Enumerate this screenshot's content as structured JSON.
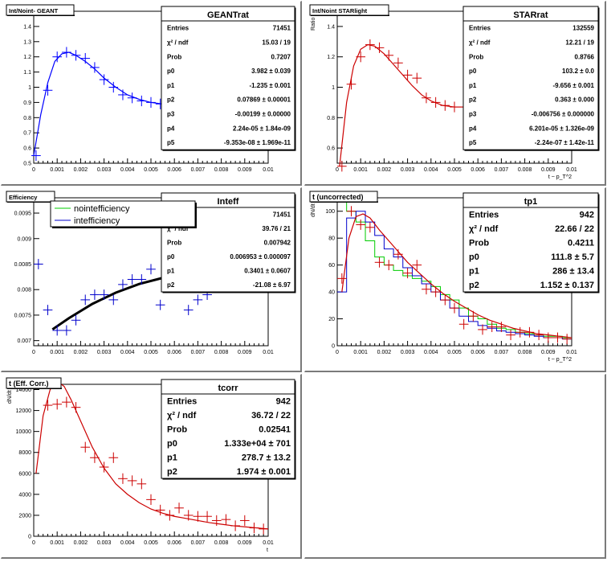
{
  "pads": [
    {
      "title": "Int/Noint- GEANT",
      "stats": {
        "name": "GEANTrat",
        "rows": [
          {
            "k": "Entries",
            "v": "71451"
          },
          {
            "k": "χ² / ndf",
            "v": "15.03 / 19"
          },
          {
            "k": "Prob",
            "v": "0.7207"
          },
          {
            "k": "p0",
            "v": "3.982 ± 0.039"
          },
          {
            "k": "p1",
            "v": "-1.235 ± 0.001"
          },
          {
            "k": "p2",
            "v": "0.07869 ± 0.00001"
          },
          {
            "k": "p3",
            "v": "-0.00199 ± 0.00000"
          },
          {
            "k": "p4",
            "v": "2.24e-05 ± 1.84e-09"
          },
          {
            "k": "p5",
            "v": "-9.353e-08 ± 1.969e-11"
          }
        ]
      },
      "xlabel": "",
      "ylabel": ""
    },
    {
      "title": "Int/Noint STARlight",
      "stats": {
        "name": "STARrat",
        "rows": [
          {
            "k": "Entries",
            "v": "132559"
          },
          {
            "k": "χ² / ndf",
            "v": "12.21 / 19"
          },
          {
            "k": "Prob",
            "v": "0.8766"
          },
          {
            "k": "p0",
            "v": "103.2 ± 0.0"
          },
          {
            "k": "p1",
            "v": "-9.656 ± 0.001"
          },
          {
            "k": "p2",
            "v": "0.363 ± 0.000"
          },
          {
            "k": "p3",
            "v": "-0.006756 ± 0.000000"
          },
          {
            "k": "p4",
            "v": "6.201e-05 ± 1.326e-09"
          },
          {
            "k": "p5",
            "v": "-2.24e-07 ± 1.42e-11"
          }
        ]
      },
      "xlabel": "t ~ p_T^2",
      "ylabel": "Ratio"
    },
    {
      "title": "Efficiency",
      "stats": {
        "name": "Inteff",
        "rows": [
          {
            "k": "Entries",
            "v": "71451"
          },
          {
            "k": "χ² / ndf",
            "v": "39.76 / 21"
          },
          {
            "k": "Prob",
            "v": "0.007942"
          },
          {
            "k": "p0",
            "v": "0.006953 ± 0.000097"
          },
          {
            "k": "p1",
            "v": "0.3401 ± 0.0607"
          },
          {
            "k": "p2",
            "v": "-21.08 ± 6.97"
          }
        ]
      },
      "legend": [
        {
          "label": "nointefficiency",
          "color": "#00cc00"
        },
        {
          "label": "intefficiency",
          "color": "#0000cc"
        }
      ],
      "xlabel": "",
      "ylabel": ""
    },
    {
      "title": "t (uncorrected)",
      "stats": {
        "name": "tp1",
        "rows": [
          {
            "k": "Entries",
            "v": "942"
          },
          {
            "k": "χ² / ndf",
            "v": "22.66 / 22"
          },
          {
            "k": "Prob",
            "v": "0.4211"
          },
          {
            "k": "p0",
            "v": "111.8 ± 5.7"
          },
          {
            "k": "p1",
            "v": "286 ± 13.4"
          },
          {
            "k": "p2",
            "v": "1.152 ± 0.137"
          }
        ]
      },
      "xlabel": "t ~ p_T^2",
      "ylabel": "dN/dt"
    },
    {
      "title": "t (Eff. Corr.)",
      "stats": {
        "name": "tcorr",
        "rows": [
          {
            "k": "Entries",
            "v": "942"
          },
          {
            "k": "χ² / ndf",
            "v": "36.72 / 22"
          },
          {
            "k": "Prob",
            "v": "0.02541"
          },
          {
            "k": "p0",
            "v": "1.333e+04 ± 701"
          },
          {
            "k": "p1",
            "v": "278.7 ± 13.2"
          },
          {
            "k": "p2",
            "v": "1.974 ± 0.001"
          }
        ]
      },
      "xlabel": "t",
      "ylabel": "dN/dt"
    }
  ],
  "chart_data": [
    {
      "type": "scatter",
      "title": "Int/Noint- GEANT",
      "xlim": [
        0,
        0.01
      ],
      "ylim": [
        0.5,
        1.5
      ],
      "xticks": [
        "0",
        "0.001",
        "0.002",
        "0.003",
        "0.004",
        "0.005",
        "0.006",
        "0.007",
        "0.008",
        "0.009",
        "0.01"
      ],
      "yticks": [
        "0.5",
        "0.6",
        "0.7",
        "0.8",
        "0.9",
        "1",
        "1.1",
        "1.2",
        "1.3",
        "1.4",
        "1.5"
      ],
      "points": {
        "x": [
          0.0001,
          0.0006,
          0.001,
          0.0014,
          0.0018,
          0.0022,
          0.0026,
          0.003,
          0.0034,
          0.0038,
          0.0042,
          0.0046,
          0.005,
          0.0054
        ],
        "y": [
          0.55,
          0.98,
          1.2,
          1.23,
          1.21,
          1.19,
          1.13,
          1.05,
          1.0,
          0.95,
          0.93,
          0.91,
          0.9,
          0.89
        ],
        "color": "#0000ff"
      },
      "fit": {
        "x": [
          0.0,
          0.0003,
          0.0006,
          0.0009,
          0.0012,
          0.0015,
          0.0018,
          0.0022,
          0.0026,
          0.003,
          0.0035,
          0.004,
          0.0045,
          0.005,
          0.0055
        ],
        "y": [
          0.55,
          0.82,
          1.03,
          1.17,
          1.22,
          1.23,
          1.21,
          1.17,
          1.12,
          1.06,
          1.0,
          0.95,
          0.92,
          0.9,
          0.89
        ],
        "color": "#0000ff"
      }
    },
    {
      "type": "scatter",
      "title": "Int/Noint STARlight",
      "xlim": [
        0,
        0.01
      ],
      "ylim": [
        0.5,
        1.5
      ],
      "xlabel": "t ~ p_T^2",
      "ylabel": "Ratio",
      "xticks": [
        "0",
        "0.001",
        "0.002",
        "0.003",
        "0.004",
        "0.005",
        "0.006",
        "0.007",
        "0.008",
        "0.009",
        "0.01"
      ],
      "yticks": [
        "0.6",
        "0.8",
        "1",
        "1.2",
        "1.4"
      ],
      "points": {
        "x": [
          0.0002,
          0.0006,
          0.001,
          0.0014,
          0.0018,
          0.0022,
          0.0026,
          0.003,
          0.0034,
          0.0038,
          0.0042,
          0.0046,
          0.005,
          0.0054
        ],
        "y": [
          0.48,
          1.02,
          1.2,
          1.28,
          1.26,
          1.21,
          1.16,
          1.08,
          1.06,
          0.93,
          0.9,
          0.88,
          0.87,
          0.87
        ],
        "color": "#cc0000"
      },
      "fit": {
        "x": [
          0.0001,
          0.0004,
          0.0007,
          0.001,
          0.0013,
          0.0016,
          0.002,
          0.0024,
          0.0028,
          0.0032,
          0.0036,
          0.004,
          0.0045,
          0.005,
          0.0055
        ],
        "y": [
          0.48,
          0.9,
          1.14,
          1.25,
          1.28,
          1.27,
          1.22,
          1.15,
          1.08,
          1.01,
          0.95,
          0.91,
          0.88,
          0.87,
          0.87
        ],
        "color": "#cc0000"
      }
    },
    {
      "type": "scatter",
      "title": "Efficiency",
      "xlim": [
        0,
        0.01
      ],
      "ylim": [
        0.0069,
        0.0098
      ],
      "xticks": [
        "0",
        "0.001",
        "0.002",
        "0.003",
        "0.004",
        "0.005",
        "0.006",
        "0.007",
        "0.008",
        "0.009",
        "0.01"
      ],
      "yticks": [
        "0.007",
        "0.0075",
        "0.008",
        "0.0085",
        "0.009",
        "0.0095"
      ],
      "points": {
        "x": [
          0.0002,
          0.0006,
          0.001,
          0.0014,
          0.0018,
          0.0022,
          0.0026,
          0.003,
          0.0034,
          0.0038,
          0.0042,
          0.0046,
          0.005,
          0.0054,
          0.0058,
          0.0062,
          0.0066,
          0.007,
          0.0074,
          0.0078,
          0.0082,
          0.0086,
          0.009,
          0.0094,
          0.0098
        ],
        "y": [
          0.0085,
          0.0076,
          0.0072,
          0.0072,
          0.0074,
          0.0078,
          0.0079,
          0.0079,
          0.0078,
          0.0081,
          0.0082,
          0.0082,
          0.0084,
          0.0077,
          0.0081,
          0.0083,
          0.0076,
          0.0078,
          0.0079,
          0.0084,
          0.0083,
          0.0083,
          0.0081,
          0.0083,
          0.0082
        ],
        "color": "#0000cc"
      },
      "fit": {
        "x": [
          0.0008,
          0.0015,
          0.0025,
          0.0035,
          0.0045,
          0.0055,
          0.0065,
          0.0075,
          0.0085,
          0.0095,
          0.01
        ],
        "y": [
          0.00722,
          0.00744,
          0.00772,
          0.00794,
          0.00811,
          0.00823,
          0.00831,
          0.00834,
          0.00832,
          0.00826,
          0.00822
        ],
        "color": "#000000"
      }
    },
    {
      "type": "line",
      "title": "t (uncorrected)",
      "xlim": [
        0,
        0.01
      ],
      "ylim": [
        0,
        110
      ],
      "xlabel": "t ~ p_T^2",
      "ylabel": "dN/dt",
      "xticks": [
        "0",
        "0.001",
        "0.002",
        "0.003",
        "0.004",
        "0.005",
        "0.006",
        "0.007",
        "0.008",
        "0.009",
        "0.01"
      ],
      "yticks": [
        "0",
        "20",
        "40",
        "60",
        "80",
        "100"
      ],
      "series": [
        {
          "color": "#00cc00",
          "x": [
            0,
            0.0004,
            0.0008,
            0.0012,
            0.0016,
            0.002,
            0.0024,
            0.0028,
            0.0032,
            0.0036,
            0.004,
            0.0044,
            0.0048,
            0.0052,
            0.0056,
            0.006,
            0.0064,
            0.0068,
            0.0072,
            0.0076,
            0.008,
            0.0084,
            0.0088,
            0.0092,
            0.0096,
            0.01
          ],
          "y": [
            108,
            100,
            92,
            78,
            66,
            60,
            56,
            52,
            50,
            48,
            44,
            38,
            34,
            28,
            22,
            20,
            16,
            13,
            12,
            10,
            9,
            8,
            7,
            7,
            6,
            6
          ]
        },
        {
          "color": "#0000cc",
          "x": [
            0,
            0.0004,
            0.0008,
            0.0012,
            0.0016,
            0.002,
            0.0024,
            0.0028,
            0.0032,
            0.0036,
            0.004,
            0.0044,
            0.0048,
            0.0052,
            0.0056,
            0.006,
            0.0064,
            0.0068,
            0.0072,
            0.0076,
            0.008,
            0.0084,
            0.0088,
            0.0092,
            0.0096,
            0.01
          ],
          "y": [
            40,
            95,
            100,
            92,
            82,
            72,
            66,
            58,
            52,
            46,
            40,
            34,
            28,
            22,
            18,
            15,
            13,
            11,
            10,
            9,
            8,
            7,
            6,
            6,
            5,
            5
          ]
        }
      ],
      "points": {
        "x": [
          0.0002,
          0.0006,
          0.001,
          0.0014,
          0.0018,
          0.0022,
          0.0026,
          0.003,
          0.0034,
          0.0038,
          0.0042,
          0.0046,
          0.005,
          0.0054,
          0.0058,
          0.0062,
          0.0066,
          0.007,
          0.0074,
          0.0078,
          0.0082,
          0.0086,
          0.009,
          0.0094,
          0.0098
        ],
        "y": [
          50,
          100,
          90,
          88,
          62,
          60,
          68,
          54,
          60,
          42,
          40,
          34,
          28,
          16,
          22,
          12,
          14,
          14,
          8,
          10,
          10,
          8,
          6,
          6,
          5
        ],
        "color": "#cc0000"
      },
      "fit": {
        "x": [
          0.0002,
          0.0005,
          0.0008,
          0.0011,
          0.0014,
          0.0018,
          0.0022,
          0.0026,
          0.003,
          0.0035,
          0.004,
          0.0045,
          0.005,
          0.0055,
          0.006,
          0.0065,
          0.007,
          0.0075,
          0.008,
          0.0085,
          0.009,
          0.0095,
          0.01
        ],
        "y": [
          40,
          80,
          96,
          98,
          95,
          86,
          78,
          70,
          62,
          54,
          46,
          39,
          33,
          28,
          23,
          19,
          16,
          13,
          11,
          9,
          8,
          7,
          6
        ],
        "color": "#cc0000"
      }
    },
    {
      "type": "scatter",
      "title": "t (Eff. Corr.)",
      "xlim": [
        0,
        0.01
      ],
      "ylim": [
        0,
        14500
      ],
      "xlabel": "t",
      "ylabel": "dN/dt",
      "xticks": [
        "0",
        "0.001",
        "0.002",
        "0.003",
        "0.004",
        "0.005",
        "0.006",
        "0.007",
        "0.008",
        "0.009",
        "0.01"
      ],
      "yticks": [
        "0",
        "2000",
        "4000",
        "6000",
        "8000",
        "10000",
        "12000",
        "14000"
      ],
      "points": {
        "x": [
          0.0006,
          0.001,
          0.0014,
          0.0018,
          0.0022,
          0.0026,
          0.003,
          0.0034,
          0.0038,
          0.0042,
          0.0046,
          0.005,
          0.0054,
          0.0058,
          0.0062,
          0.0066,
          0.007,
          0.0074,
          0.0078,
          0.0082,
          0.0086,
          0.009,
          0.0094,
          0.0098
        ],
        "y": [
          12500,
          12600,
          12800,
          12300,
          8500,
          7500,
          6600,
          7500,
          5500,
          5300,
          5000,
          3500,
          2500,
          2000,
          2700,
          2000,
          1900,
          1900,
          1500,
          1600,
          1000,
          1500,
          800,
          700
        ],
        "color": "#cc0000"
      },
      "fit": {
        "x": [
          0.0001,
          0.0004,
          0.0007,
          0.001,
          0.0013,
          0.0016,
          0.002,
          0.0025,
          0.003,
          0.0035,
          0.004,
          0.0045,
          0.005,
          0.0055,
          0.006,
          0.0065,
          0.007,
          0.0075,
          0.008,
          0.0085,
          0.009,
          0.0095,
          0.01
        ],
        "y": [
          6000,
          11500,
          14000,
          14800,
          14300,
          13000,
          11000,
          8500,
          6500,
          5000,
          4000,
          3200,
          2600,
          2200,
          1900,
          1700,
          1500,
          1300,
          1150,
          1000,
          900,
          800,
          700
        ],
        "color": "#cc0000"
      }
    }
  ]
}
